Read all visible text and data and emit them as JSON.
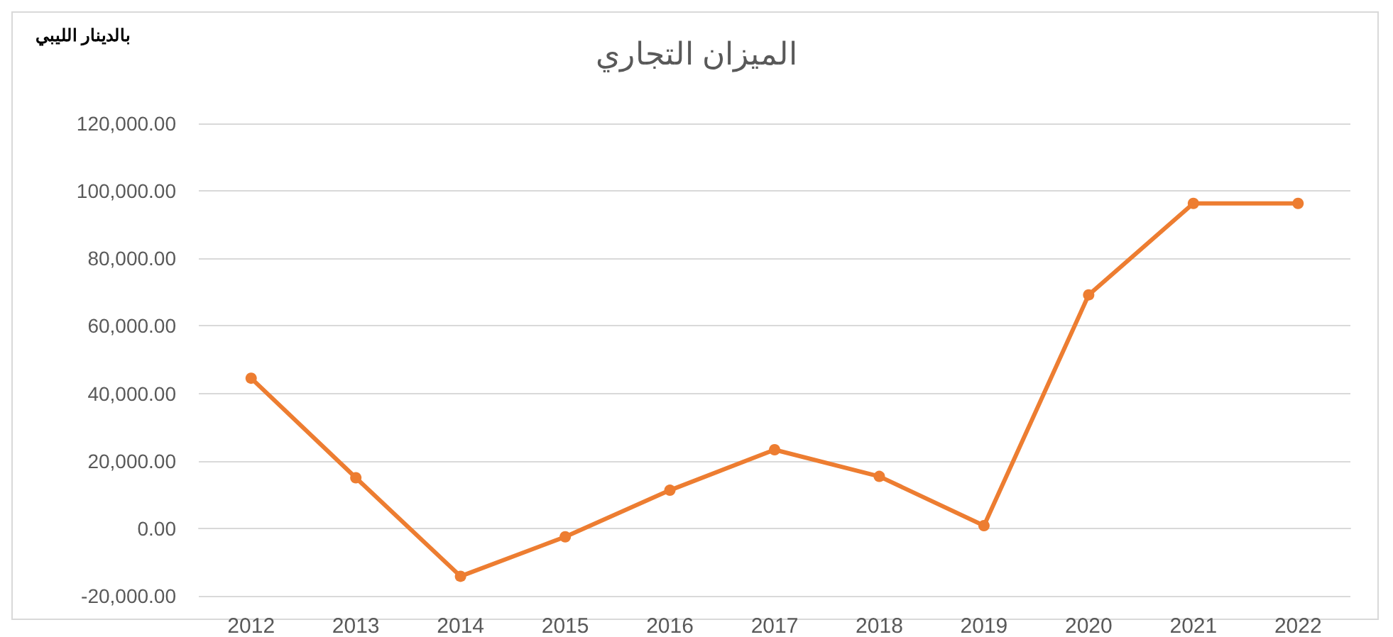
{
  "chart_data": {
    "type": "line",
    "title": "الميزان التجاري",
    "ylabel": "بالدينار الليبي",
    "categories": [
      "2012",
      "2013",
      "2014",
      "2015",
      "2016",
      "2017",
      "2018",
      "2019",
      "2020",
      "2021",
      "2022"
    ],
    "series": [
      {
        "color": "#ed7d31",
        "values": [
          44500,
          15000,
          -14200,
          -2500,
          11300,
          23300,
          15400,
          800,
          69200,
          96300,
          96300
        ]
      }
    ],
    "ylim": [
      -20000,
      120000
    ],
    "yticks": [
      {
        "value": -20000,
        "label": "-20,000.00"
      },
      {
        "value": 0,
        "label": "0.00"
      },
      {
        "value": 20000,
        "label": "20,000.00"
      },
      {
        "value": 40000,
        "label": "40,000.00"
      },
      {
        "value": 60000,
        "label": "60,000.00"
      },
      {
        "value": 80000,
        "label": "80,000.00"
      },
      {
        "value": 100000,
        "label": "100,000.00"
      },
      {
        "value": 120000,
        "label": "120,000.00"
      }
    ],
    "grid": "y",
    "marker": "circle",
    "line_style": "solid"
  }
}
